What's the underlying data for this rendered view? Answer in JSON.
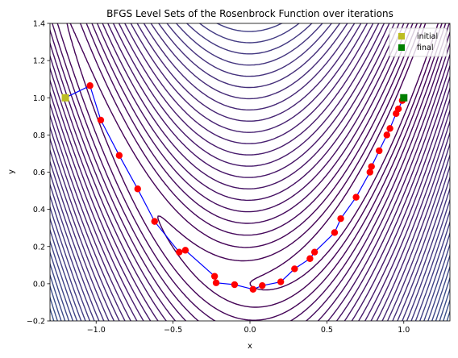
{
  "chart_data": {
    "type": "scatter",
    "title": "BFGS Level Sets of the Rosenbrock Function over iterations",
    "xlabel": "x",
    "ylabel": "y",
    "xlim": [
      -1.3,
      1.3
    ],
    "ylim": [
      -0.2,
      1.4
    ],
    "xticks": [
      "−1.0",
      "−0.5",
      "0.0",
      "0.5",
      "1.0"
    ],
    "xtick_values": [
      -1.0,
      -0.5,
      0.0,
      0.5,
      1.0
    ],
    "yticks": [
      "−0.2",
      "0.0",
      "0.2",
      "0.4",
      "0.6",
      "0.8",
      "1.0",
      "1.2",
      "1.4"
    ],
    "ytick_values": [
      -0.2,
      0.0,
      0.2,
      0.4,
      0.6,
      0.8,
      1.0,
      1.2,
      1.4
    ],
    "grid": false,
    "legend_position": "top-right",
    "contour": {
      "function": "rosenbrock",
      "levels_sqrt": [
        1.0,
        1.6,
        2.2,
        2.8,
        3.4,
        4.0,
        4.6,
        5.2,
        5.8,
        6.4,
        7.0,
        7.6,
        8.2,
        8.8,
        9.4,
        10.0,
        10.6,
        11.2,
        11.8,
        12.4,
        13.0,
        13.6,
        14.2,
        14.8,
        15.4,
        16.0,
        16.6,
        17.2,
        17.8,
        18.4,
        19.0
      ],
      "colormap": "viridis-dark"
    },
    "series": [
      {
        "name": "initial",
        "marker": "square",
        "color": "#bcbd22",
        "points": [
          {
            "x": -1.2,
            "y": 1.0
          }
        ]
      },
      {
        "name": "final",
        "marker": "square",
        "color": "#008000",
        "points": [
          {
            "x": 1.0,
            "y": 1.0
          }
        ]
      },
      {
        "marker": "circle",
        "color": "#ff0000",
        "points": [
          {
            "x": -1.2,
            "y": 1.0
          },
          {
            "x": -1.04,
            "y": 1.065
          },
          {
            "x": -0.97,
            "y": 0.88
          },
          {
            "x": -0.85,
            "y": 0.69
          },
          {
            "x": -0.73,
            "y": 0.51
          },
          {
            "x": -0.62,
            "y": 0.335
          },
          {
            "x": -0.46,
            "y": 0.17
          },
          {
            "x": -0.42,
            "y": 0.18
          },
          {
            "x": -0.23,
            "y": 0.04
          },
          {
            "x": -0.22,
            "y": 0.005
          },
          {
            "x": -0.1,
            "y": -0.005
          },
          {
            "x": 0.02,
            "y": -0.03
          },
          {
            "x": 0.08,
            "y": -0.01
          },
          {
            "x": 0.2,
            "y": 0.01
          },
          {
            "x": 0.29,
            "y": 0.08
          },
          {
            "x": 0.39,
            "y": 0.135
          },
          {
            "x": 0.42,
            "y": 0.17
          },
          {
            "x": 0.55,
            "y": 0.275
          },
          {
            "x": 0.59,
            "y": 0.35
          },
          {
            "x": 0.69,
            "y": 0.465
          },
          {
            "x": 0.78,
            "y": 0.6
          },
          {
            "x": 0.79,
            "y": 0.63
          },
          {
            "x": 0.84,
            "y": 0.715
          },
          {
            "x": 0.89,
            "y": 0.8
          },
          {
            "x": 0.91,
            "y": 0.835
          },
          {
            "x": 0.95,
            "y": 0.915
          },
          {
            "x": 0.965,
            "y": 0.94
          },
          {
            "x": 0.99,
            "y": 0.985
          },
          {
            "x": 1.0,
            "y": 1.0
          }
        ]
      }
    ],
    "path_color": "#0000ff"
  }
}
